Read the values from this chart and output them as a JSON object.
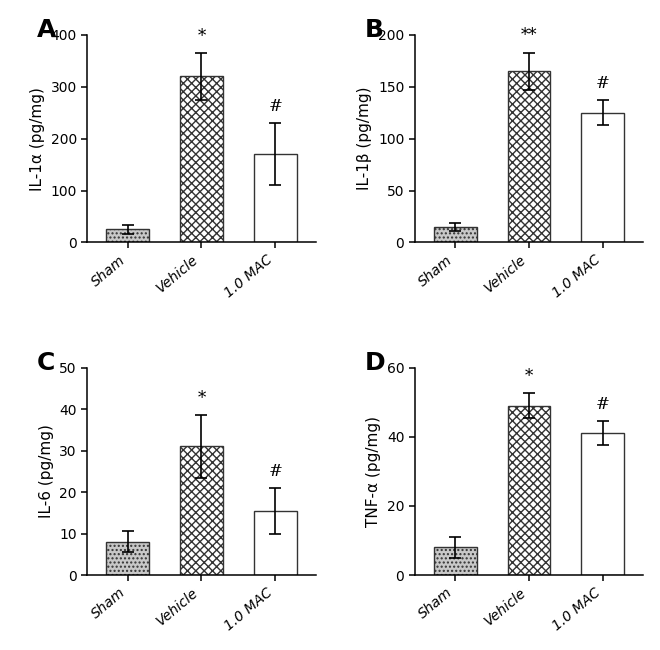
{
  "panels": [
    {
      "label": "A",
      "ylabel": "IL-1α (pg/mg)",
      "ylim": [
        0,
        400
      ],
      "yticks": [
        0,
        100,
        200,
        300,
        400
      ],
      "categories": [
        "Sham",
        "Vehicle",
        "1.0 MAC"
      ],
      "values": [
        25,
        320,
        170
      ],
      "errors": [
        8,
        45,
        60
      ],
      "significance": [
        "",
        "*",
        "#"
      ]
    },
    {
      "label": "B",
      "ylabel": "IL-1β (pg/mg)",
      "ylim": [
        0,
        200
      ],
      "yticks": [
        0,
        50,
        100,
        150,
        200
      ],
      "categories": [
        "Sham",
        "Vehicle",
        "1.0 MAC"
      ],
      "values": [
        15,
        165,
        125
      ],
      "errors": [
        4,
        18,
        12
      ],
      "significance": [
        "",
        "**",
        "#"
      ]
    },
    {
      "label": "C",
      "ylabel": "IL-6 (pg/mg)",
      "ylim": [
        0,
        50
      ],
      "yticks": [
        0,
        10,
        20,
        30,
        40,
        50
      ],
      "categories": [
        "Sham",
        "Vehicle",
        "1.0 MAC"
      ],
      "values": [
        8,
        31,
        15.5
      ],
      "errors": [
        2.5,
        7.5,
        5.5
      ],
      "significance": [
        "",
        "*",
        "#"
      ]
    },
    {
      "label": "D",
      "ylabel": "TNF-α (pg/mg)",
      "ylim": [
        0,
        60
      ],
      "yticks": [
        0,
        20,
        40,
        60
      ],
      "categories": [
        "Sham",
        "Vehicle",
        "1.0 MAC"
      ],
      "values": [
        8,
        49,
        41
      ],
      "errors": [
        3,
        3.5,
        3.5
      ],
      "significance": [
        "",
        "*",
        "#"
      ]
    }
  ],
  "bar_edgecolor": "#333333",
  "background_color": "#ffffff",
  "label_fontsize": 18,
  "tick_fontsize": 10,
  "ylabel_fontsize": 11,
  "sig_fontsize": 12
}
